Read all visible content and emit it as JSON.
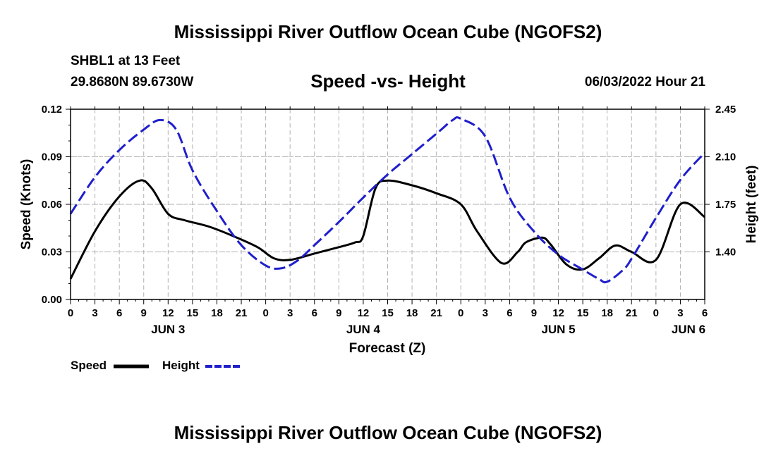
{
  "header": {
    "title": "Mississippi River Outflow Ocean Cube (NGOFS2)",
    "station": "SHBL1 at 13 Feet",
    "coordinates": "29.8680N  89.6730W",
    "subtitle": "Speed -vs- Height",
    "datetime": "06/03/2022 Hour 21"
  },
  "footer": {
    "title": "Mississippi River Outflow Ocean Cube (NGOFS2)"
  },
  "legend": {
    "speed_label": "Speed",
    "height_label": "Height"
  },
  "colors": {
    "speed": "#000000",
    "height": "#1f1fcc",
    "grid": "#b0b0b0",
    "frame": "#000000"
  },
  "chart_data": {
    "type": "line",
    "title": "Speed -vs- Height",
    "xlabel": "Forecast (Z)",
    "ylabel": "Speed (Knots)",
    "y2label": "Height (feet)",
    "x_unit": "hours from JUN 3 00Z",
    "xlim": [
      0,
      78
    ],
    "ylim": [
      0,
      0.12
    ],
    "y2lim": [
      1.05,
      2.45
    ],
    "x_ticks": [
      0,
      3,
      6,
      9,
      12,
      15,
      18,
      21,
      24,
      27,
      30,
      33,
      36,
      39,
      42,
      45,
      48,
      51,
      54,
      57,
      60,
      63,
      66,
      69,
      72,
      75,
      78
    ],
    "x_tick_labels": [
      "0",
      "3",
      "6",
      "9",
      "12",
      "15",
      "18",
      "21",
      "0",
      "3",
      "6",
      "9",
      "12",
      "15",
      "18",
      "21",
      "0",
      "3",
      "6",
      "9",
      "12",
      "15",
      "18",
      "21",
      "0",
      "3",
      "6"
    ],
    "day_labels": [
      {
        "x": 12,
        "label": "JUN 3"
      },
      {
        "x": 36,
        "label": "JUN 4"
      },
      {
        "x": 60,
        "label": "JUN 5"
      },
      {
        "x": 76,
        "label": "JUN 6"
      }
    ],
    "y_ticks": [
      0.0,
      0.03,
      0.06,
      0.09,
      0.12
    ],
    "y_tick_labels": [
      "0.00",
      "0.03",
      "0.06",
      "0.09",
      "0.12"
    ],
    "y2_ticks": [
      1.4,
      1.75,
      2.1,
      2.45
    ],
    "y2_tick_labels": [
      "1.40",
      "1.75",
      "2.10",
      "2.45"
    ],
    "grid": true,
    "series": [
      {
        "name": "Speed",
        "axis": "left",
        "style": "solid",
        "x": [
          0,
          3,
          6,
          8.5,
          10,
          12,
          14,
          17,
          20,
          23,
          25,
          27,
          30,
          33,
          35,
          36,
          37.5,
          39,
          42,
          45,
          48,
          50,
          53,
          55,
          56,
          58,
          59,
          61,
          63,
          65,
          67,
          69,
          72,
          75,
          78
        ],
        "values": [
          0.013,
          0.043,
          0.065,
          0.075,
          0.07,
          0.054,
          0.05,
          0.046,
          0.04,
          0.033,
          0.026,
          0.025,
          0.029,
          0.033,
          0.036,
          0.04,
          0.07,
          0.075,
          0.072,
          0.067,
          0.06,
          0.043,
          0.023,
          0.03,
          0.036,
          0.039,
          0.035,
          0.022,
          0.019,
          0.026,
          0.034,
          0.03,
          0.025,
          0.06,
          0.052
        ]
      },
      {
        "name": "Height",
        "axis": "right",
        "style": "dashed",
        "x": [
          0,
          3,
          6,
          9,
          11,
          13,
          15,
          18,
          21,
          24,
          26,
          28,
          30,
          33,
          36,
          39,
          42,
          45,
          47,
          48,
          51,
          54,
          57,
          60,
          63,
          65,
          66,
          68,
          69,
          72,
          75,
          78
        ],
        "values": [
          1.68,
          1.95,
          2.15,
          2.3,
          2.37,
          2.3,
          2.0,
          1.7,
          1.45,
          1.3,
          1.28,
          1.34,
          1.45,
          1.62,
          1.8,
          1.97,
          2.12,
          2.27,
          2.37,
          2.38,
          2.25,
          1.8,
          1.55,
          1.38,
          1.27,
          1.2,
          1.18,
          1.27,
          1.35,
          1.65,
          1.93,
          2.13
        ]
      }
    ]
  }
}
